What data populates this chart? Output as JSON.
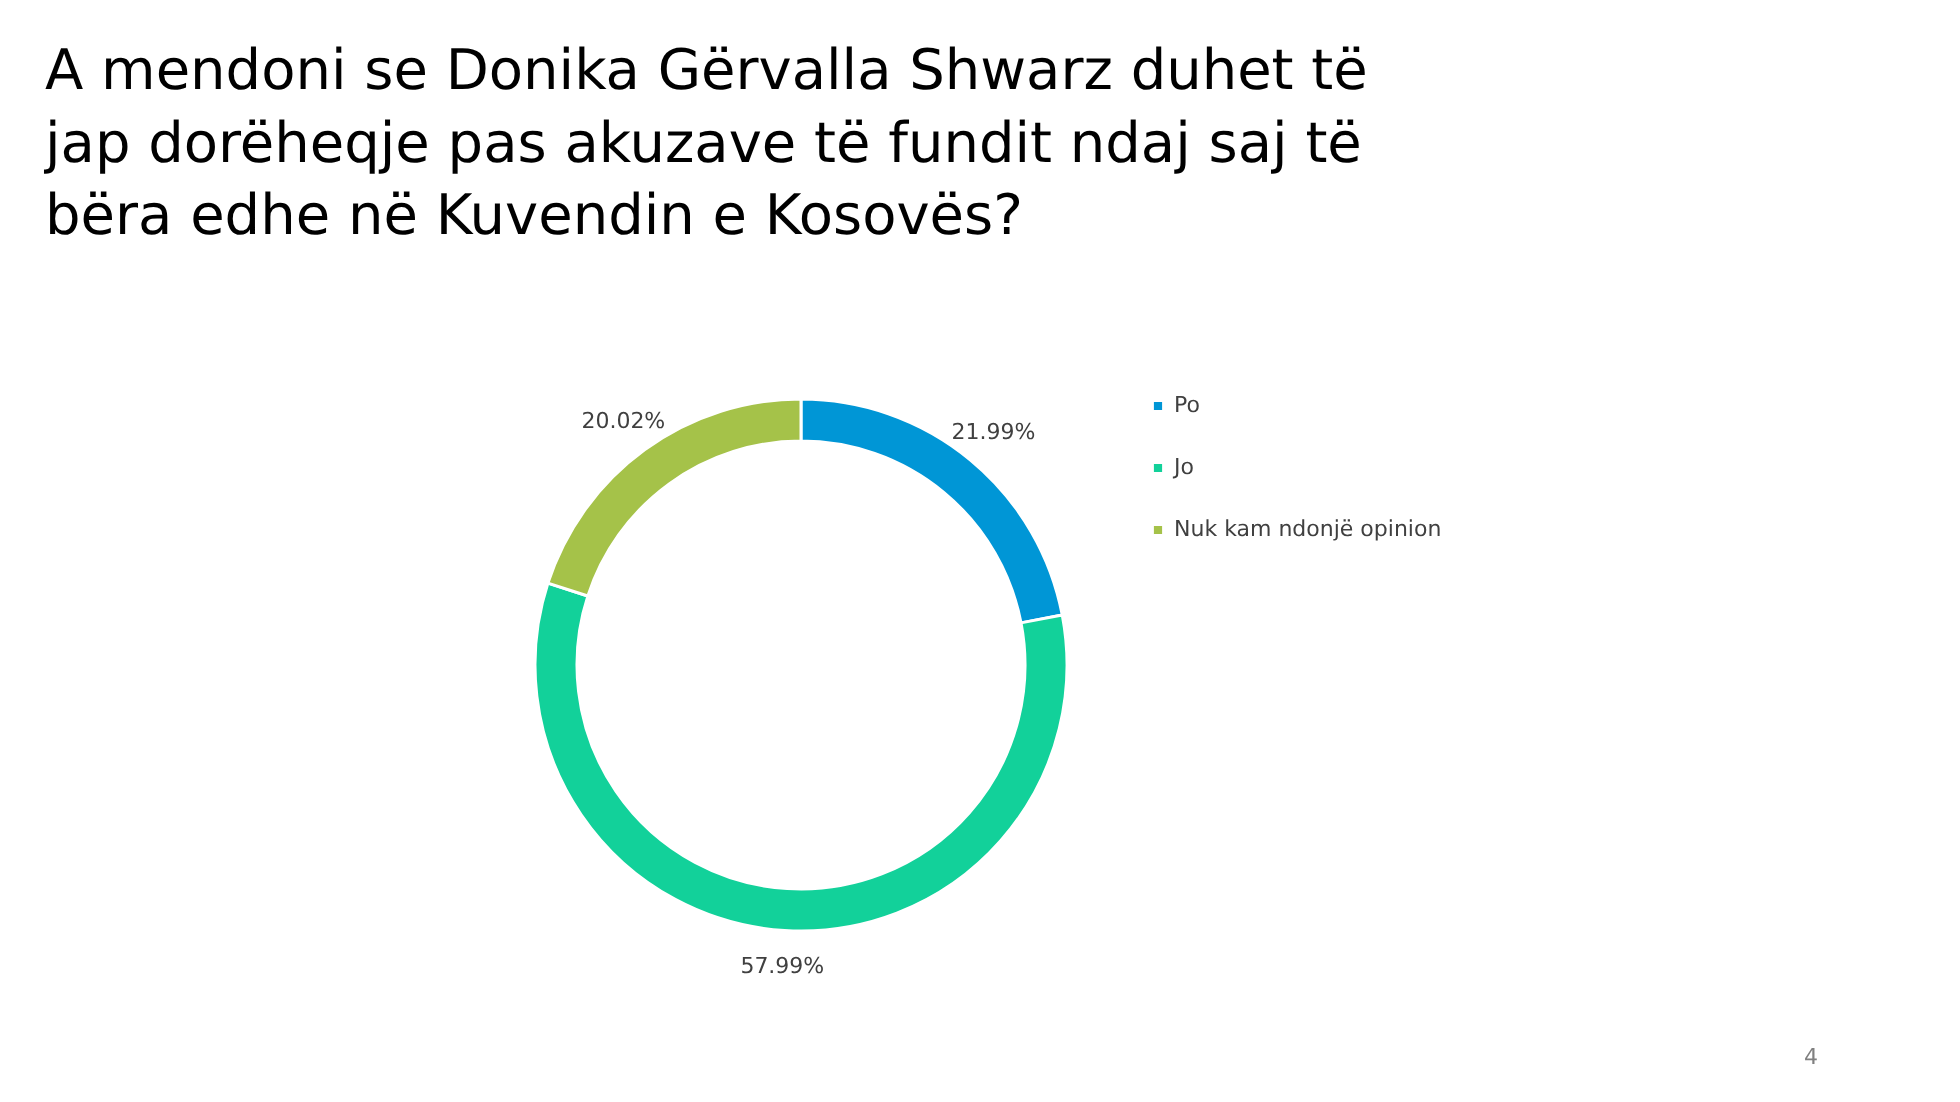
{
  "chart_data": {
    "type": "donut",
    "title": "A mendoni se Donika Gërvalla Shwarz duhet të jap dorëheqje pas akuzave të fundit ndaj saj të bëra edhe në Kuvendin e Kosovës?",
    "categories": [
      "Po",
      "Jo",
      "Nuk kam ndonjë opinion"
    ],
    "values": [
      21.99,
      57.99,
      20.02
    ],
    "colors": [
      "#0096d6",
      "#12d19a",
      "#a5c249"
    ],
    "value_labels": [
      "21.99%",
      "57.99%",
      "20.02%"
    ],
    "legend": "right",
    "annotations": [
      "4"
    ]
  }
}
